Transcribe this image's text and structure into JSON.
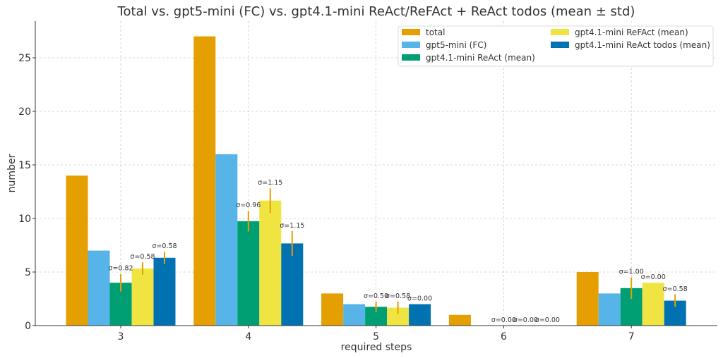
{
  "chart_data": {
    "type": "bar",
    "title": "Total vs. gpt5-mini (FC) vs. gpt4.1-mini ReAct/ReFAct + ReAct todos (mean ± std)",
    "xlabel": "required steps",
    "ylabel": "number",
    "categories": [
      "3",
      "4",
      "5",
      "6",
      "7"
    ],
    "ylim": [
      0,
      28.4
    ],
    "yticks": [
      0,
      5,
      10,
      15,
      20,
      25
    ],
    "grid": true,
    "legend_placement": "top-right",
    "series": [
      {
        "name": "total",
        "color": "#e69f00",
        "values": [
          14,
          27,
          3,
          1,
          5
        ]
      },
      {
        "name": "gpt5-mini (FC)",
        "color": "#56b4e9",
        "values": [
          7,
          16,
          2,
          0,
          3
        ]
      },
      {
        "name": "gpt4.1-mini ReAct (mean)",
        "color": "#009e73",
        "values": [
          4.0,
          9.75,
          1.75,
          0,
          3.5
        ],
        "std": [
          0.82,
          0.96,
          0.5,
          0.0,
          1.0
        ],
        "std_labels": [
          "σ=0.82",
          "σ=0.96",
          "σ=0.50",
          "σ=0.00",
          "σ=1.00"
        ]
      },
      {
        "name": "gpt4.1-mini ReFAct (mean)",
        "color": "#f0e442",
        "values": [
          5.33,
          11.67,
          1.67,
          0,
          4.0
        ],
        "std": [
          0.58,
          1.15,
          0.58,
          0.0,
          0.0
        ],
        "std_labels": [
          "σ=0.58",
          "σ=1.15",
          "σ=0.58",
          "σ=0.00",
          "σ=0.00"
        ]
      },
      {
        "name": "gpt4.1-mini ReAct todos (mean)",
        "color": "#0072b2",
        "values": [
          6.33,
          7.67,
          2.0,
          0,
          2.33
        ],
        "std": [
          0.58,
          1.15,
          0.0,
          0.0,
          0.58
        ],
        "std_labels": [
          "σ=0.58",
          "σ=1.15",
          "σ=0.00",
          "σ=0.00",
          "σ=0.58"
        ]
      }
    ],
    "errorbar_color": "#e69f00"
  }
}
